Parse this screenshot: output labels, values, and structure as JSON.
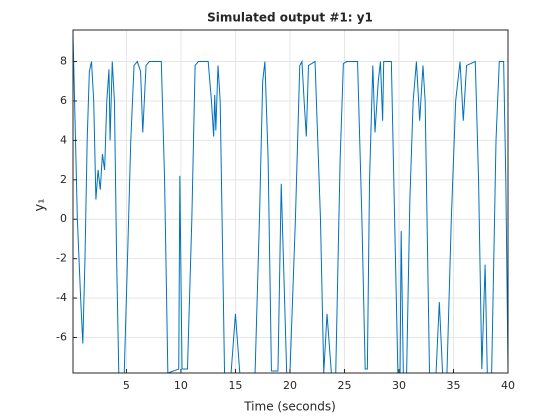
{
  "chart_data": {
    "type": "line",
    "title": "Simulated output #1: y1",
    "xlabel": "Time (seconds)",
    "ylabel": "y₁",
    "xlim": [
      0.1,
      40
    ],
    "ylim": [
      -7.8,
      9.6
    ],
    "xticks": [
      5,
      10,
      15,
      20,
      25,
      30,
      35,
      40
    ],
    "yticks": [
      -6,
      -4,
      -2,
      0,
      2,
      4,
      6,
      8
    ],
    "grid": true,
    "series": [
      {
        "name": "y1",
        "color": "#0072bd",
        "x": [
          0.1,
          0.5,
          0.8,
          1.0,
          1.2,
          1.4,
          1.6,
          1.8,
          2.0,
          2.2,
          2.4,
          2.6,
          2.8,
          3.0,
          3.2,
          3.4,
          3.5,
          3.7,
          3.9,
          4.1,
          4.3,
          4.8,
          5.1,
          5.4,
          5.7,
          6.0,
          6.3,
          6.5,
          6.8,
          7.1,
          8.2,
          8.5,
          8.8,
          9.8,
          9.9,
          10.1,
          10.6,
          11.0,
          11.3,
          11.6,
          12.5,
          12.8,
          13.0,
          13.1,
          13.2,
          13.4,
          13.6,
          14.0,
          14.6,
          15.0,
          15.4,
          16.8,
          17.2,
          17.5,
          17.7,
          18.0,
          18.3,
          18.9,
          19.2,
          19.4,
          19.7,
          20.0,
          20.5,
          20.9,
          21.1,
          21.3,
          21.5,
          21.7,
          22.3,
          22.8,
          23.1,
          23.4,
          23.8,
          24.2,
          24.6,
          24.9,
          25.2,
          26.2,
          26.6,
          26.9,
          27.1,
          27.3,
          27.6,
          27.8,
          28.1,
          28.3,
          28.5,
          28.6,
          29.3,
          29.6,
          29.9,
          30.1,
          30.2,
          30.4,
          30.7,
          31.0,
          31.3,
          31.6,
          31.9,
          32.2,
          32.4,
          32.8,
          33.4,
          33.7,
          34.0,
          34.4,
          34.8,
          35.2,
          35.6,
          35.9,
          36.2,
          37.0,
          37.3,
          37.6,
          37.9,
          38.1,
          38.5,
          38.9,
          39.2,
          39.6,
          39.8,
          40.0
        ],
        "values": [
          9.4,
          0,
          -4,
          -6.3,
          -2,
          4,
          7.5,
          8,
          6,
          1,
          2.5,
          1.5,
          3.3,
          2.5,
          6,
          7.6,
          4,
          8,
          6,
          -2,
          -7.8,
          -7.8,
          -2,
          4,
          7.8,
          8,
          7.5,
          4.4,
          7.8,
          8,
          8,
          2,
          -7.8,
          -7.6,
          2.2,
          -7.6,
          -7.6,
          0,
          7.8,
          8,
          8,
          6,
          4.2,
          6.3,
          4.5,
          7.8,
          6,
          -7.8,
          -7.8,
          -4.8,
          -7.8,
          -7.8,
          0,
          7,
          8,
          3,
          -7.7,
          -7.7,
          1.8,
          -2,
          -7.8,
          -7.8,
          0,
          7.8,
          8,
          6,
          4.2,
          7.8,
          8,
          0,
          -7.8,
          -4.8,
          -7.8,
          -7.8,
          3,
          7.9,
          8,
          8,
          0,
          -7.6,
          -7.6,
          2,
          7.8,
          4.4,
          7,
          8,
          5,
          8,
          8,
          0,
          -7.8,
          -7.8,
          -0.6,
          -7.8,
          -7.8,
          1,
          6,
          8,
          5,
          7.8,
          6,
          -7.8,
          -7.8,
          -4.2,
          -7.8,
          -7.8,
          0,
          6,
          8,
          5,
          7.8,
          8,
          2,
          -7.6,
          -2.3,
          -7.8,
          -7.8,
          4,
          8,
          8,
          2,
          -7.6
        ]
      }
    ]
  }
}
